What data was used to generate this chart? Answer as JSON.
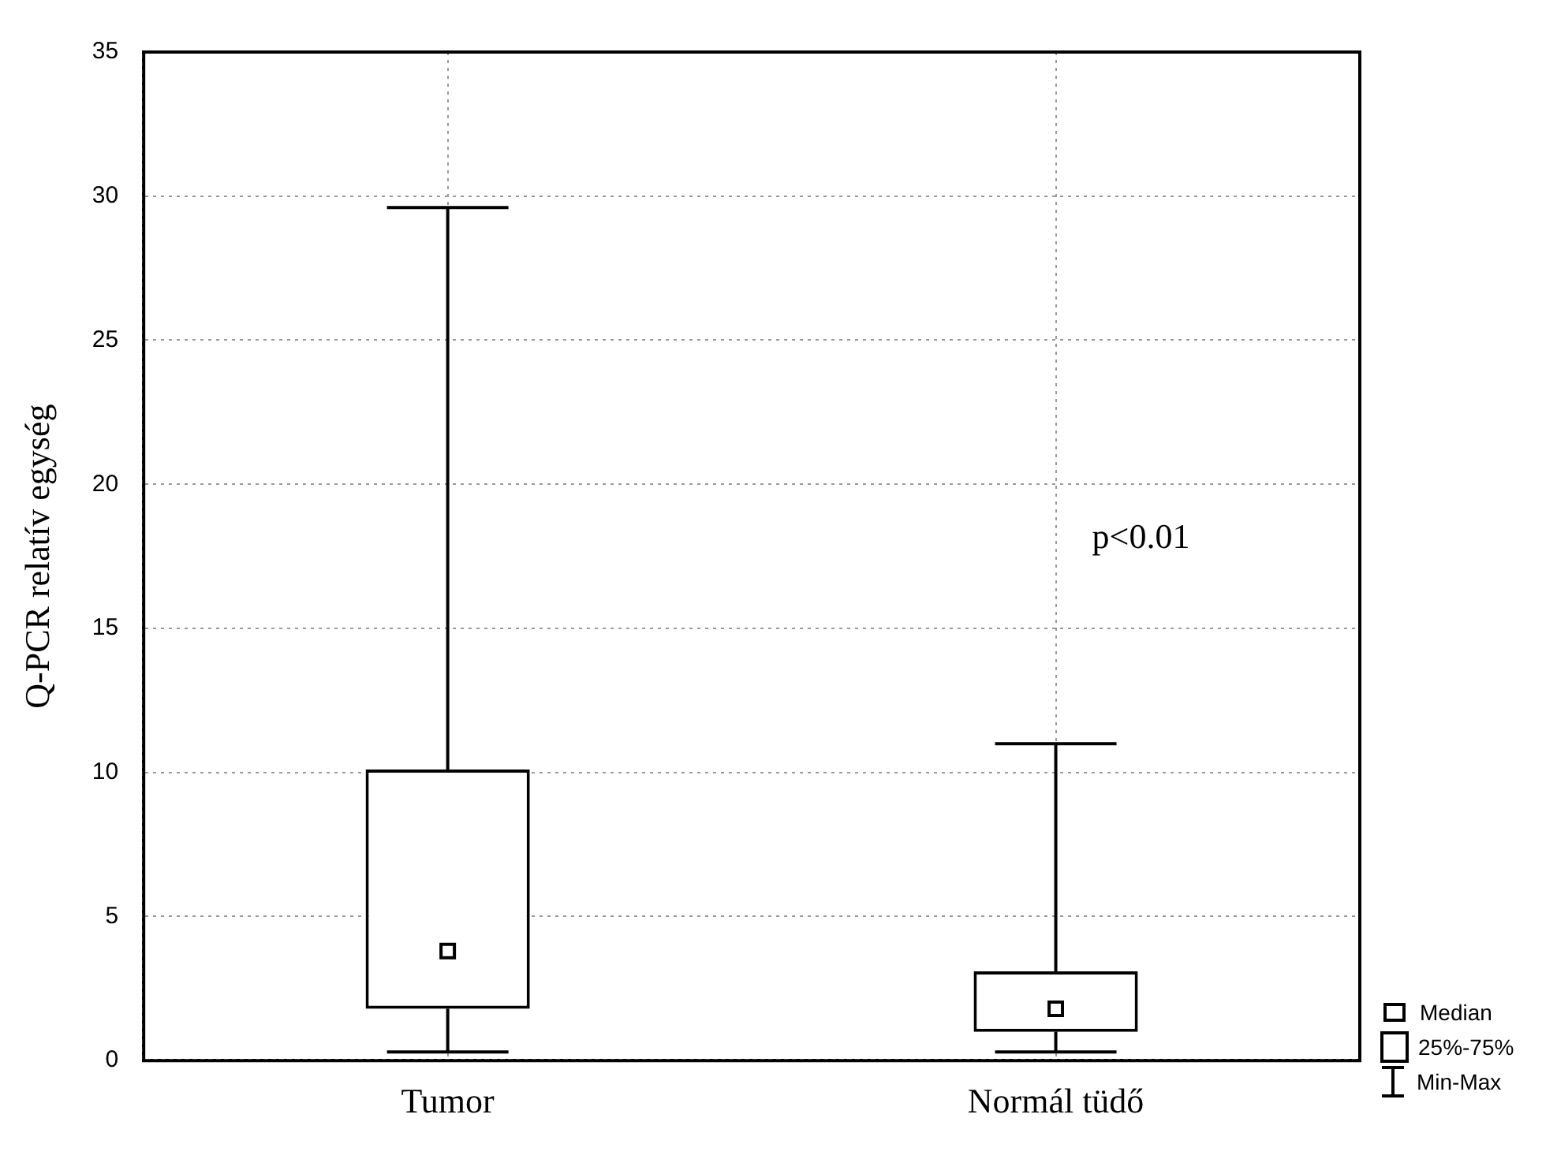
{
  "chart_data": {
    "type": "box",
    "ylabel": "Q-PCR relatív egység",
    "categories": [
      "Tumor",
      "Normál tüdő"
    ],
    "boxes": [
      {
        "low": 0.3,
        "q1": 1.8,
        "median": 3.8,
        "q3": 10.1,
        "high": 29.6
      },
      {
        "low": 0.3,
        "q1": 1.0,
        "median": 1.8,
        "q3": 3.1,
        "high": 11.0
      }
    ],
    "ylim": [
      0,
      35
    ],
    "yticks": [
      0,
      5,
      10,
      15,
      20,
      25,
      30,
      35
    ],
    "grid": true,
    "marker": "square",
    "annotations": [
      "p<0.01",
      "Median",
      "25%-75%",
      "Min-Max"
    ]
  }
}
